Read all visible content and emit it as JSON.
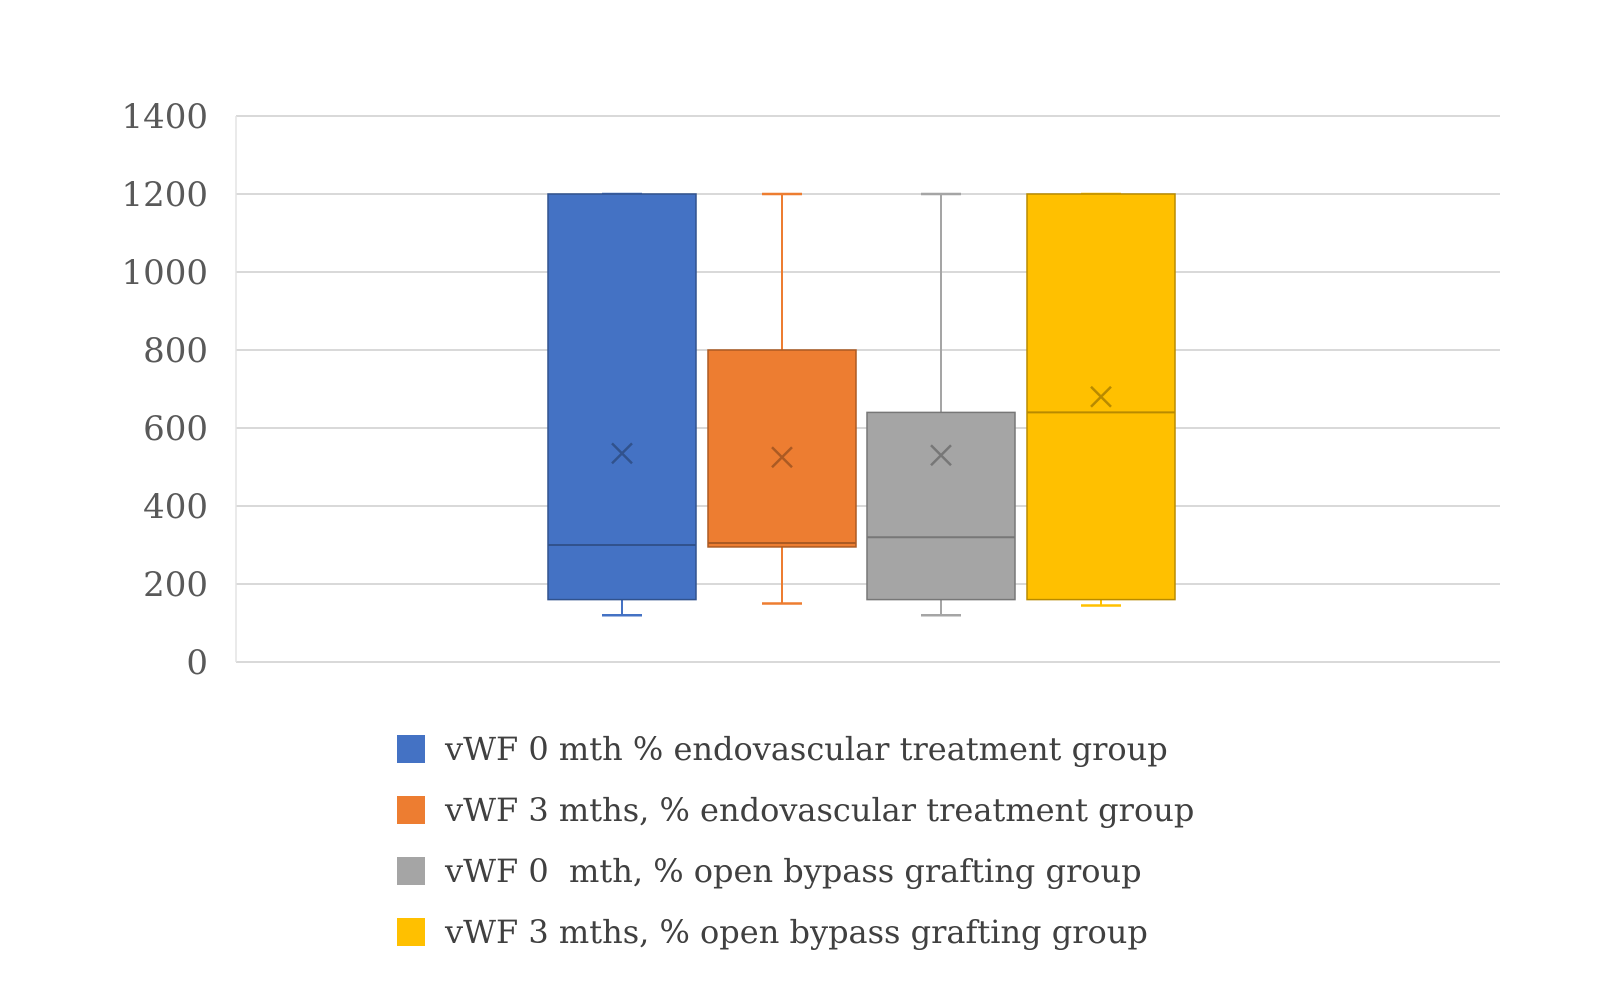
{
  "chart_data": {
    "type": "boxplot",
    "yticks": [
      0,
      200,
      400,
      600,
      800,
      1000,
      1200,
      1400
    ],
    "ylim": [
      0,
      1400
    ],
    "grid": true,
    "legend_position": "bottom",
    "series": [
      {
        "name": "vWF 0 mth % endovascular treatment group",
        "color": "#4472C4",
        "min": 120,
        "q1": 160,
        "median": 300,
        "q3": 1200,
        "max": 1200,
        "mean": 535
      },
      {
        "name": "vWF 3 mths, % endovascular treatment group",
        "color": "#ED7D31",
        "min": 150,
        "q1": 295,
        "median": 305,
        "q3": 800,
        "max": 1200,
        "mean": 525
      },
      {
        "name": "vWF 0  mth, % open bypass grafting group",
        "color": "#A5A5A5",
        "min": 120,
        "q1": 160,
        "median": 320,
        "q3": 640,
        "max": 1200,
        "mean": 530
      },
      {
        "name": "vWF 3 mths, % open bypass grafting group",
        "color": "#FFC000",
        "min": 145,
        "q1": 160,
        "median": 640,
        "q3": 1200,
        "max": 1200,
        "mean": 680
      }
    ]
  }
}
